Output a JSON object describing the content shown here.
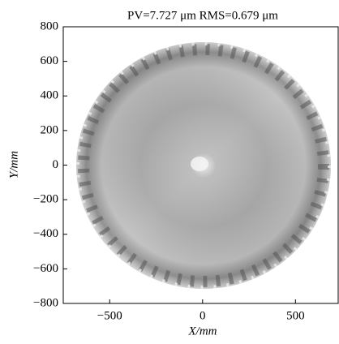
{
  "chart_data": {
    "type": "image",
    "title": "PV=7.727 μm RMS=0.679 μm",
    "xlabel": "X/mm",
    "ylabel": "Y/mm",
    "xlim": [
      -750,
      730
    ],
    "ylim": [
      -800,
      800
    ],
    "xticks": [
      {
        "value": -500,
        "label": "−500"
      },
      0,
      500
    ],
    "yticks": [
      {
        "value": -800,
        "label": "−800"
      },
      {
        "value": -600,
        "label": "−600"
      },
      {
        "value": -400,
        "label": "−400"
      },
      {
        "value": -200,
        "label": "−200"
      },
      0,
      200,
      400,
      600,
      800
    ]
  }
}
